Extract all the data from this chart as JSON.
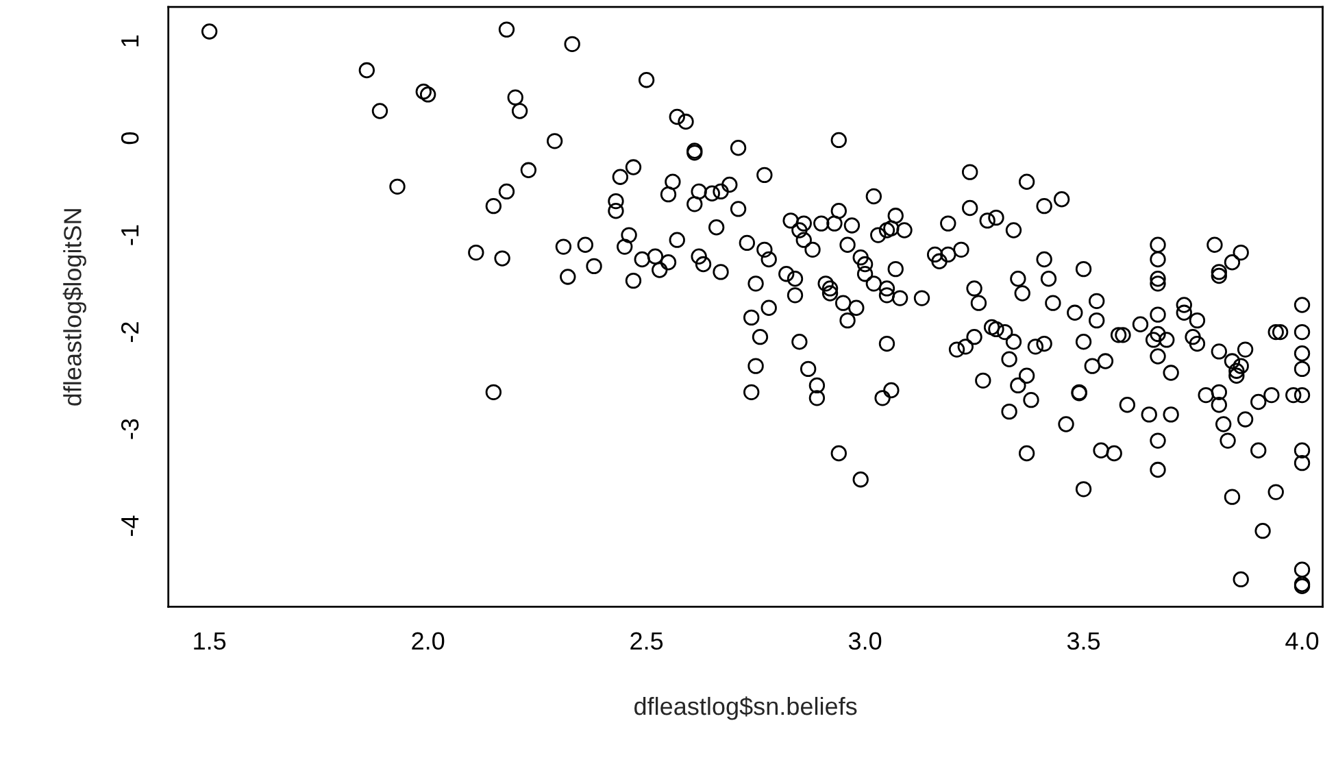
{
  "chart_data": {
    "type": "scatter",
    "xlabel": "dfleastlog$sn.beliefs",
    "ylabel": "dfleastlog$logitSN",
    "xlim": [
      1.406,
      4.047
    ],
    "ylim": [
      -4.833,
      1.353
    ],
    "xticks": [
      1.5,
      {
        "value": 2,
        "label": "2.0"
      },
      2.5,
      {
        "value": 3,
        "label": "3.0"
      },
      3.5,
      {
        "value": 4,
        "label": "4.0"
      }
    ],
    "yticks": [
      1,
      0,
      -1,
      -2,
      -3,
      -4
    ],
    "grid": false,
    "marker": "circle",
    "series": [
      {
        "color": "#000000",
        "x": [
          1.5,
          1.86,
          1.89,
          1.93,
          1.99,
          2.0,
          2.11,
          2.15,
          2.15,
          2.17,
          2.18,
          2.18,
          2.2,
          2.21,
          2.23,
          2.29,
          2.31,
          2.32,
          2.33,
          2.36,
          2.38,
          2.43,
          2.43,
          2.44,
          2.45,
          2.46,
          2.47,
          2.47,
          2.49,
          2.5,
          2.52,
          2.53,
          2.55,
          2.55,
          2.56,
          2.57,
          2.57,
          2.59,
          2.61,
          2.61,
          2.61,
          2.62,
          2.62,
          2.63,
          2.65,
          2.66,
          2.67,
          2.67,
          2.69,
          2.71,
          2.71,
          2.73,
          2.74,
          2.74,
          2.75,
          2.75,
          2.76,
          2.77,
          2.77,
          2.78,
          2.78,
          2.82,
          2.83,
          2.84,
          2.84,
          2.85,
          2.85,
          2.86,
          2.86,
          2.87,
          2.88,
          2.89,
          2.89,
          2.9,
          2.91,
          2.92,
          2.92,
          2.93,
          2.94,
          2.94,
          2.94,
          2.95,
          2.96,
          2.96,
          2.97,
          2.98,
          2.99,
          2.99,
          3.0,
          3.0,
          3.02,
          3.02,
          3.03,
          3.04,
          3.05,
          3.05,
          3.05,
          3.05,
          3.06,
          3.06,
          3.07,
          3.07,
          3.08,
          3.09,
          3.13,
          3.16,
          3.17,
          3.19,
          3.19,
          3.21,
          3.22,
          3.23,
          3.24,
          3.24,
          3.25,
          3.25,
          3.26,
          3.27,
          3.28,
          3.29,
          3.3,
          3.3,
          3.32,
          3.33,
          3.33,
          3.34,
          3.34,
          3.35,
          3.35,
          3.36,
          3.37,
          3.37,
          3.37,
          3.38,
          3.39,
          3.41,
          3.41,
          3.41,
          3.42,
          3.43,
          3.45,
          3.46,
          3.48,
          3.49,
          3.49,
          3.5,
          3.5,
          3.5,
          3.52,
          3.53,
          3.53,
          3.54,
          3.55,
          3.57,
          3.58,
          3.59,
          3.6,
          3.63,
          3.65,
          3.66,
          3.67,
          3.67,
          3.67,
          3.67,
          3.67,
          3.67,
          3.67,
          3.67,
          3.67,
          3.69,
          3.7,
          3.7,
          3.73,
          3.73,
          3.75,
          3.76,
          3.76,
          3.78,
          3.8,
          3.81,
          3.81,
          3.81,
          3.81,
          3.81,
          3.82,
          3.83,
          3.84,
          3.84,
          3.84,
          3.85,
          3.85,
          3.86,
          3.86,
          3.86,
          3.87,
          3.87,
          3.9,
          3.9,
          3.91,
          3.93,
          3.94,
          3.94,
          3.95,
          3.98,
          4.0,
          4.0,
          4.0,
          4.0,
          4.0,
          4.0,
          4.0,
          4.0,
          4.0,
          4.0
        ],
        "values": [
          1.1,
          0.7,
          0.28,
          -0.5,
          0.48,
          0.45,
          -1.18,
          -0.7,
          -2.62,
          -1.24,
          -0.55,
          1.12,
          0.42,
          0.28,
          -0.33,
          -0.03,
          -1.12,
          -1.43,
          0.97,
          -1.1,
          -1.32,
          -0.65,
          -0.75,
          -0.4,
          -1.12,
          -1.0,
          -0.3,
          -1.47,
          -1.25,
          0.6,
          -1.22,
          -1.36,
          -0.58,
          -1.28,
          -0.45,
          0.22,
          -1.05,
          0.17,
          -0.13,
          -0.15,
          -0.68,
          -1.22,
          -0.55,
          -1.3,
          -0.57,
          -0.92,
          -0.55,
          -1.38,
          -0.48,
          -0.1,
          -0.73,
          -1.08,
          -1.85,
          -2.62,
          -1.5,
          -2.35,
          -2.05,
          -0.38,
          -1.15,
          -1.25,
          -1.75,
          -1.4,
          -0.85,
          -1.45,
          -1.62,
          -2.1,
          -0.95,
          -1.05,
          -0.88,
          -2.38,
          -1.15,
          -2.55,
          -2.68,
          -0.88,
          -1.5,
          -1.6,
          -1.55,
          -0.88,
          -0.75,
          -0.02,
          -3.25,
          -1.7,
          -1.1,
          -1.88,
          -0.9,
          -1.75,
          -1.23,
          -3.52,
          -1.4,
          -1.3,
          -0.6,
          -1.5,
          -1.0,
          -2.68,
          -1.55,
          -0.95,
          -2.12,
          -1.62,
          -0.93,
          -2.6,
          -1.35,
          -0.8,
          -1.65,
          -0.95,
          -1.65,
          -1.2,
          -1.27,
          -0.88,
          -1.2,
          -2.18,
          -1.15,
          -2.15,
          -0.72,
          -0.35,
          -2.05,
          -1.55,
          -1.7,
          -2.5,
          -0.85,
          -1.95,
          -1.97,
          -0.82,
          -2.0,
          -2.82,
          -2.28,
          -0.95,
          -2.1,
          -1.45,
          -2.55,
          -1.6,
          -0.45,
          -2.45,
          -3.25,
          -2.7,
          -2.15,
          -2.12,
          -1.25,
          -0.7,
          -1.45,
          -1.7,
          -0.63,
          -2.95,
          -1.8,
          -2.63,
          -2.62,
          -1.35,
          -3.62,
          -2.1,
          -2.35,
          -1.68,
          -1.88,
          -3.22,
          -2.3,
          -3.25,
          -2.03,
          -2.03,
          -2.75,
          -1.92,
          -2.85,
          -2.08,
          -1.1,
          -1.25,
          -1.45,
          -1.5,
          -1.82,
          -2.02,
          -2.25,
          -3.12,
          -3.42,
          -2.08,
          -2.42,
          -2.85,
          -1.72,
          -1.8,
          -2.05,
          -1.88,
          -2.12,
          -2.65,
          -1.1,
          -1.38,
          -1.42,
          -2.2,
          -2.62,
          -2.75,
          -2.95,
          -3.12,
          -2.3,
          -3.7,
          -1.28,
          -2.45,
          -2.4,
          -1.18,
          -2.35,
          -4.55,
          -2.9,
          -2.18,
          -2.72,
          -3.22,
          -4.05,
          -2.65,
          -2.0,
          -3.65,
          -2.0,
          -2.65,
          -1.72,
          -2.0,
          -2.22,
          -2.38,
          -2.65,
          -3.22,
          -3.35,
          -4.45,
          -4.6,
          -4.62
        ]
      }
    ]
  }
}
